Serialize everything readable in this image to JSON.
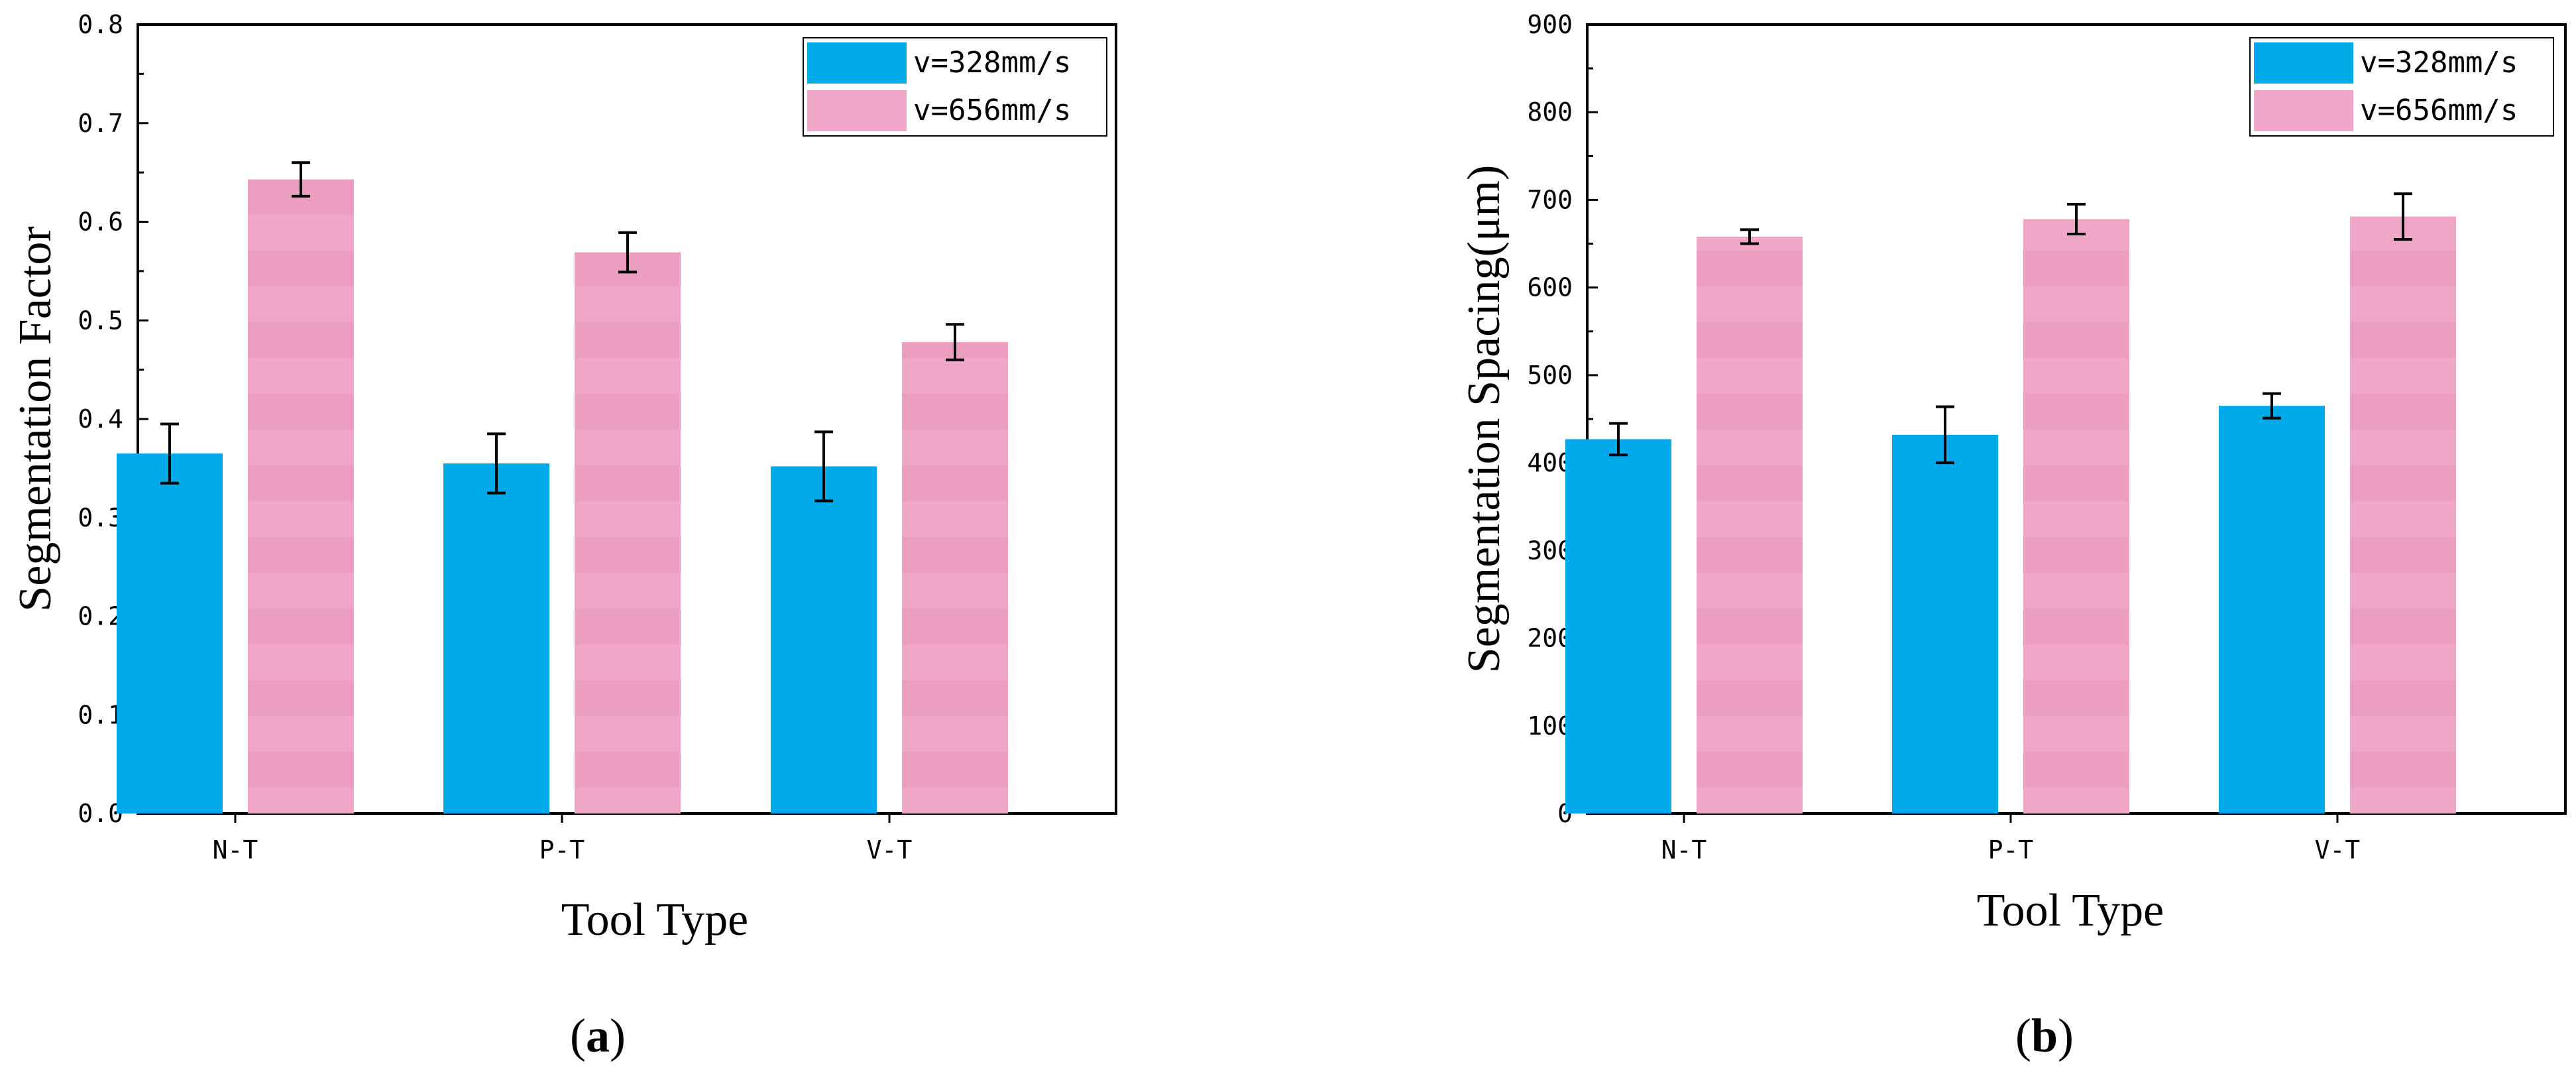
{
  "colors": {
    "series1": "#00A9E8",
    "series2": "#F0A6C6",
    "series2_band": "#EC9EC0",
    "axis": "#000000",
    "error": "#000000"
  },
  "chart_data": [
    {
      "type": "bar",
      "panel_label": "a",
      "categories": [
        "N-T",
        "P-T",
        "V-T"
      ],
      "xlabel": "Tool Type",
      "ylabel": "Segmentation Factor",
      "ylim": [
        0,
        0.8
      ],
      "yticks": [
        "0.0",
        "0.1",
        "0.2",
        "0.3",
        "0.4",
        "0.5",
        "0.6",
        "0.7",
        "0.8"
      ],
      "ytick_values": [
        0,
        0.1,
        0.2,
        0.3,
        0.4,
        0.5,
        0.6,
        0.7,
        0.8
      ],
      "legend_position": "top-right",
      "series": [
        {
          "name": "v=328mm/s",
          "values": [
            0.365,
            0.355,
            0.352
          ],
          "errors": [
            0.03,
            0.03,
            0.035
          ]
        },
        {
          "name": "v=656mm/s",
          "values": [
            0.643,
            0.569,
            0.478
          ],
          "errors": [
            0.017,
            0.02,
            0.018
          ]
        }
      ]
    },
    {
      "type": "bar",
      "panel_label": "b",
      "categories": [
        "N-T",
        "P-T",
        "V-T"
      ],
      "xlabel": "Tool Type",
      "ylabel": "Segmentation Spacing(μm)",
      "ylim": [
        0,
        900
      ],
      "yticks": [
        "0",
        "100",
        "200",
        "300",
        "400",
        "500",
        "600",
        "700",
        "800",
        "900"
      ],
      "ytick_values": [
        0,
        100,
        200,
        300,
        400,
        500,
        600,
        700,
        800,
        900
      ],
      "legend_position": "top-right",
      "series": [
        {
          "name": "v=328mm/s",
          "values": [
            427,
            432,
            465
          ],
          "errors": [
            18,
            32,
            14
          ]
        },
        {
          "name": "v=656mm/s",
          "values": [
            658,
            678,
            681
          ],
          "errors": [
            8,
            17,
            26
          ]
        }
      ]
    }
  ]
}
